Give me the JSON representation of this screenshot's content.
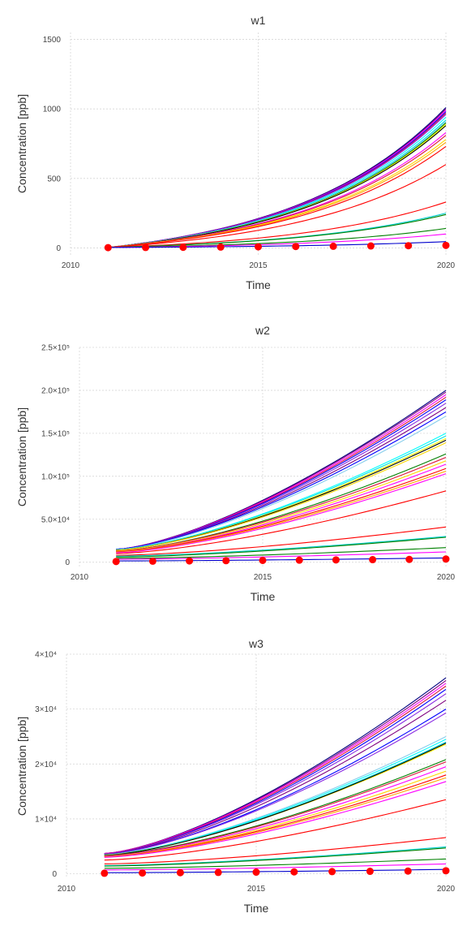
{
  "chart_data": [
    {
      "type": "line",
      "title": "w1",
      "xlabel": "Time",
      "ylabel": "Concentration [ppb]",
      "xlim": [
        2010,
        2020
      ],
      "ylim": [
        -50,
        1550
      ],
      "xticks": [
        2010,
        2015,
        2020
      ],
      "xtick_labels": [
        "2010",
        "2015",
        "2020"
      ],
      "yticks": [
        0,
        500,
        1000,
        1500
      ],
      "ytick_labels": [
        "0",
        "500",
        "1000",
        "1500"
      ],
      "grid": true,
      "legend": "none",
      "growth": "exponential",
      "x_start": 2011,
      "x_end": 2020,
      "series_start_end": [
        {
          "color": "#000080",
          "start": 3,
          "end": 1010
        },
        {
          "color": "#800080",
          "start": 3,
          "end": 1000
        },
        {
          "color": "#ff00ff",
          "start": 3,
          "end": 990
        },
        {
          "color": "#0000ff",
          "start": 3,
          "end": 980
        },
        {
          "color": "#dc143c",
          "start": 3,
          "end": 970
        },
        {
          "color": "#8a2be2",
          "start": 3,
          "end": 960
        },
        {
          "color": "#00ffff",
          "start": 3,
          "end": 940
        },
        {
          "color": "#00e0e0",
          "start": 3,
          "end": 920
        },
        {
          "color": "#87ceeb",
          "start": 3,
          "end": 910
        },
        {
          "color": "#008000",
          "start": 3,
          "end": 900
        },
        {
          "color": "#ffff00",
          "start": 3,
          "end": 890
        },
        {
          "color": "#000000",
          "start": 3,
          "end": 880
        },
        {
          "color": "#ff00ff",
          "start": 3,
          "end": 830
        },
        {
          "color": "#dc143c",
          "start": 3,
          "end": 810
        },
        {
          "color": "#ffd700",
          "start": 3,
          "end": 780
        },
        {
          "color": "#ffa500",
          "start": 3,
          "end": 760
        },
        {
          "color": "#ff0000",
          "start": 3,
          "end": 730
        },
        {
          "color": "#ff0000",
          "start": 3,
          "end": 600
        },
        {
          "color": "#ff0000",
          "start": 3,
          "end": 330
        },
        {
          "color": "#00ced1",
          "start": 3,
          "end": 250
        },
        {
          "color": "#008000",
          "start": 3,
          "end": 240
        },
        {
          "color": "#008000",
          "start": 3,
          "end": 140
        },
        {
          "color": "#ff00ff",
          "start": 3,
          "end": 100
        },
        {
          "color": "#0000cd",
          "start": 3,
          "end": 45
        }
      ],
      "observations": {
        "x": [
          2011,
          2012,
          2013,
          2014,
          2015,
          2016,
          2017,
          2018,
          2019,
          2020
        ],
        "y": [
          2,
          3,
          4,
          6,
          8,
          10,
          12,
          14,
          16,
          18
        ]
      }
    },
    {
      "type": "line",
      "title": "w2",
      "xlabel": "Time",
      "ylabel": "Concentration [ppb]",
      "xlim": [
        2010,
        2020
      ],
      "ylim": [
        -5000,
        250000
      ],
      "xticks": [
        2010,
        2015,
        2020
      ],
      "xtick_labels": [
        "2010",
        "2015",
        "2020"
      ],
      "yticks": [
        0,
        50000,
        100000,
        150000,
        200000,
        250000
      ],
      "ytick_labels": [
        "0",
        "5.0×10⁴",
        "1.0×10⁵",
        "1.5×10⁵",
        "2.0×10⁵",
        "2.5×10⁵"
      ],
      "grid": true,
      "legend": "none",
      "growth": "power",
      "x_start": 2011,
      "x_end": 2020,
      "series_start_end": [
        {
          "color": "#000080",
          "start": 15000,
          "end": 200000
        },
        {
          "color": "#800080",
          "start": 15000,
          "end": 198000
        },
        {
          "color": "#ff00ff",
          "start": 15000,
          "end": 195000
        },
        {
          "color": "#dc143c",
          "start": 15000,
          "end": 192000
        },
        {
          "color": "#0000ff",
          "start": 15000,
          "end": 189000
        },
        {
          "color": "#8a2be2",
          "start": 15000,
          "end": 185000
        },
        {
          "color": "#800080",
          "start": 15000,
          "end": 180000
        },
        {
          "color": "#0000ff",
          "start": 15000,
          "end": 175000
        },
        {
          "color": "#87ceeb",
          "start": 14500,
          "end": 170000
        },
        {
          "color": "#00ffff",
          "start": 14500,
          "end": 150000
        },
        {
          "color": "#00e0e0",
          "start": 14500,
          "end": 147000
        },
        {
          "color": "#ffff00",
          "start": 14000,
          "end": 144000
        },
        {
          "color": "#000000",
          "start": 14000,
          "end": 142000
        },
        {
          "color": "#ffd700",
          "start": 14000,
          "end": 139000
        },
        {
          "color": "#008000",
          "start": 13000,
          "end": 126000
        },
        {
          "color": "#dc143c",
          "start": 13000,
          "end": 122000
        },
        {
          "color": "#ffd700",
          "start": 12500,
          "end": 118000
        },
        {
          "color": "#ff00ff",
          "start": 12000,
          "end": 114000
        },
        {
          "color": "#ff0000",
          "start": 12000,
          "end": 109000
        },
        {
          "color": "#ffa500",
          "start": 11500,
          "end": 106000
        },
        {
          "color": "#ff00ff",
          "start": 11000,
          "end": 103000
        },
        {
          "color": "#ff0000",
          "start": 10000,
          "end": 83000
        },
        {
          "color": "#ff0000",
          "start": 8000,
          "end": 41000
        },
        {
          "color": "#00ced1",
          "start": 7000,
          "end": 30000
        },
        {
          "color": "#008000",
          "start": 6000,
          "end": 29000
        },
        {
          "color": "#008000",
          "start": 4500,
          "end": 17000
        },
        {
          "color": "#ff00ff",
          "start": 3500,
          "end": 12000
        },
        {
          "color": "#0000cd",
          "start": 1500,
          "end": 5000
        }
      ],
      "observations": {
        "x": [
          2011,
          2012,
          2013,
          2014,
          2015,
          2016,
          2017,
          2018,
          2019,
          2020
        ],
        "y": [
          800,
          1200,
          1500,
          1800,
          2100,
          2400,
          2700,
          3000,
          3300,
          3700
        ]
      }
    },
    {
      "type": "line",
      "title": "w3",
      "xlabel": "Time",
      "ylabel": "Concentration [ppb]",
      "xlim": [
        2010,
        2020
      ],
      "ylim": [
        -800,
        40000
      ],
      "xticks": [
        2010,
        2015,
        2020
      ],
      "xtick_labels": [
        "2010",
        "2015",
        "2020"
      ],
      "yticks": [
        0,
        10000,
        20000,
        30000,
        40000
      ],
      "ytick_labels": [
        "0",
        "1×10⁴",
        "2×10⁴",
        "3×10⁴",
        "4×10⁴"
      ],
      "grid": true,
      "legend": "none",
      "growth": "power",
      "x_start": 2011,
      "x_end": 2020,
      "series_start_end": [
        {
          "color": "#000080",
          "start": 3700,
          "end": 35700
        },
        {
          "color": "#800080",
          "start": 3700,
          "end": 35200
        },
        {
          "color": "#ff00ff",
          "start": 3700,
          "end": 34700
        },
        {
          "color": "#dc143c",
          "start": 3650,
          "end": 34200
        },
        {
          "color": "#0000ff",
          "start": 3600,
          "end": 33600
        },
        {
          "color": "#8a2be2",
          "start": 3600,
          "end": 32800
        },
        {
          "color": "#800080",
          "start": 3550,
          "end": 31600
        },
        {
          "color": "#0000ff",
          "start": 3500,
          "end": 30000
        },
        {
          "color": "#8a2be2",
          "start": 3500,
          "end": 29300
        },
        {
          "color": "#87ceeb",
          "start": 3450,
          "end": 25000
        },
        {
          "color": "#00ffff",
          "start": 3450,
          "end": 24500
        },
        {
          "color": "#00e0e0",
          "start": 3400,
          "end": 24000
        },
        {
          "color": "#ffff00",
          "start": 3400,
          "end": 23600
        },
        {
          "color": "#000000",
          "start": 3350,
          "end": 23800
        },
        {
          "color": "#008000",
          "start": 3300,
          "end": 20800
        },
        {
          "color": "#dc143c",
          "start": 3250,
          "end": 20400
        },
        {
          "color": "#ff00ff",
          "start": 3200,
          "end": 19500
        },
        {
          "color": "#ffd700",
          "start": 3150,
          "end": 18700
        },
        {
          "color": "#ff0000",
          "start": 3100,
          "end": 18000
        },
        {
          "color": "#ffa500",
          "start": 3050,
          "end": 17500
        },
        {
          "color": "#ff00ff",
          "start": 3000,
          "end": 16800
        },
        {
          "color": "#ff0000",
          "start": 2500,
          "end": 13500
        },
        {
          "color": "#ff0000",
          "start": 1800,
          "end": 6600
        },
        {
          "color": "#00ced1",
          "start": 1500,
          "end": 4900
        },
        {
          "color": "#008000",
          "start": 1400,
          "end": 4700
        },
        {
          "color": "#008000",
          "start": 1000,
          "end": 2700
        },
        {
          "color": "#ff00ff",
          "start": 700,
          "end": 1800
        },
        {
          "color": "#0000cd",
          "start": 200,
          "end": 800
        }
      ],
      "observations": {
        "x": [
          2011,
          2012,
          2013,
          2014,
          2015,
          2016,
          2017,
          2018,
          2019,
          2020
        ],
        "y": [
          100,
          150,
          200,
          250,
          300,
          350,
          400,
          450,
          500,
          550
        ]
      }
    }
  ]
}
